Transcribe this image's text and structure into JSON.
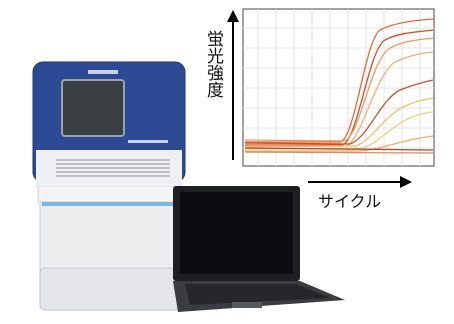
{
  "chart": {
    "y_label": "蛍光強度",
    "x_label": "サイクル"
  }
}
